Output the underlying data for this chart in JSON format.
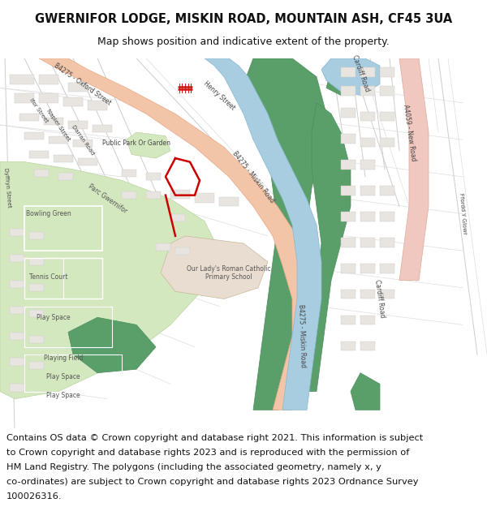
{
  "title_line1": "GWERNIFOR LODGE, MISKIN ROAD, MOUNTAIN ASH, CF45 3UA",
  "title_line2": "Map shows position and indicative extent of the property.",
  "footer_lines": [
    "Contains OS data © Crown copyright and database right 2021. This information is subject",
    "to Crown copyright and database rights 2023 and is reproduced with the permission of",
    "HM Land Registry. The polygons (including the associated geometry, namely x, y",
    "co-ordinates) are subject to Crown copyright and database rights 2023 Ordnance Survey",
    "100026316."
  ],
  "bg_color": "#ffffff",
  "map_bg": "#f8f8f6",
  "colors": {
    "road_salmon": "#f2c4a8",
    "road_salmon_edge": "#e8a888",
    "road_pink": "#f0c8c0",
    "road_pink_edge": "#e0a898",
    "park_green": "#d4e8c0",
    "park_dark_green": "#5a9e6a",
    "water_blue": "#a8cce0",
    "building_fill": "#e8e4e0",
    "building_edge": "#cccccc",
    "road_line": "#cccccc",
    "road_line2": "#dddddd",
    "property_red": "#cc0000",
    "school_tan": "#e8ddd0",
    "white": "#ffffff"
  }
}
